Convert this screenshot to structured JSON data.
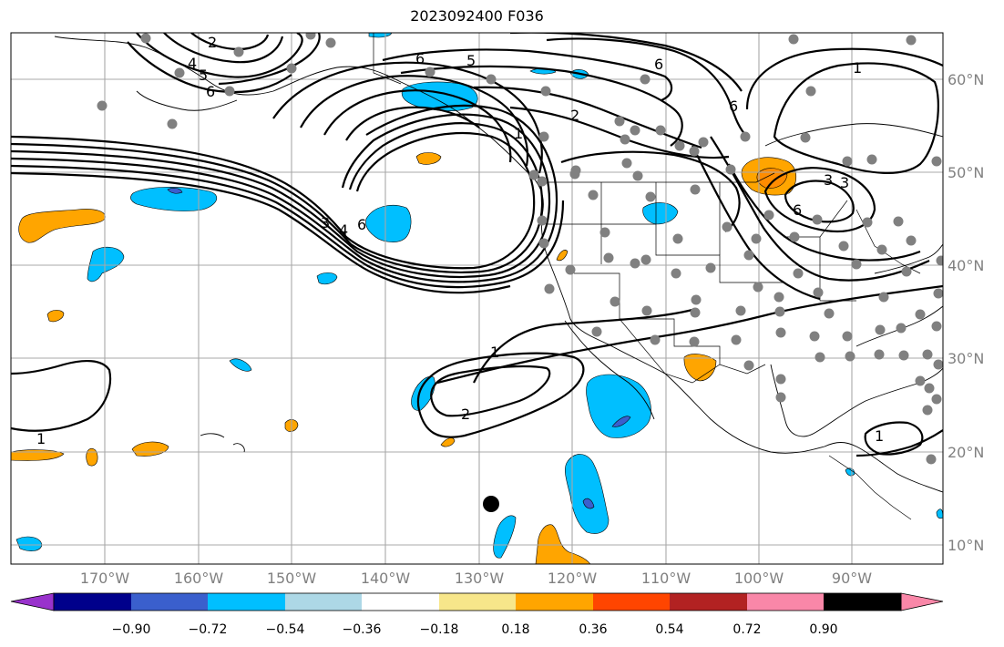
{
  "title": "2023092400 F036",
  "lat_labels": [
    "60°N",
    "50°N",
    "40°N",
    "30°N",
    "20°N",
    "10°N"
  ],
  "lon_labels": [
    "170°W",
    "160°W",
    "150°W",
    "140°W",
    "130°W",
    "120°W",
    "110°W",
    "100°W",
    "90°W"
  ],
  "colorbar": {
    "tick_labels": [
      "−0.90",
      "−0.72",
      "−0.54",
      "−0.36",
      "−0.18",
      "0.18",
      "0.36",
      "0.54",
      "0.72",
      "0.90"
    ],
    "colors": [
      "#9932cc",
      "#00008b",
      "#3a5fcd",
      "#00bfff",
      "#add8e6",
      "#ffffff",
      "#f7e68a",
      "#ffa500",
      "#ff4500",
      "#b22222",
      "#f987a8"
    ]
  },
  "contour_labels": [
    "1",
    "2",
    "3",
    "4",
    "5",
    "6"
  ],
  "map_colors": {
    "negative_fill": "#00bfff",
    "strong_negative_fill": "#3a5fcd",
    "positive_fill": "#ffa500",
    "light_negative_fill": "#add8e6",
    "station_dot": "#808080",
    "marker_dot": "#000000"
  }
}
